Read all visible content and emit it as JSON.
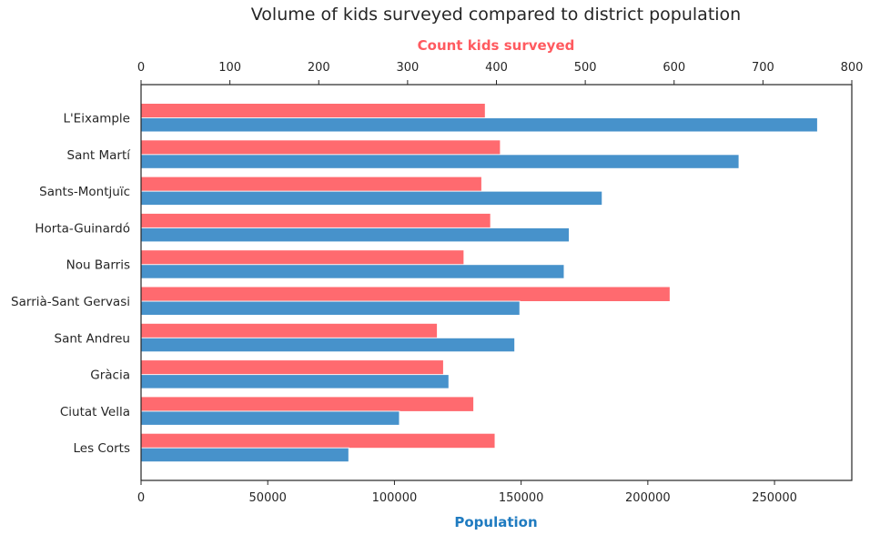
{
  "chart_data": {
    "type": "bar",
    "orientation": "horizontal",
    "title": "Volume of kids surveyed compared to district population",
    "categories": [
      "L'Eixample",
      "Sant Martí",
      "Sants-Montjuïc",
      "Horta-Guinardó",
      "Nou Barris",
      "Sarrià-Sant Gervasi",
      "Sant Andreu",
      "Gràcia",
      "Ciutat Vella",
      "Les Corts"
    ],
    "series": [
      {
        "name": "Count kids surveyed",
        "axis": "top",
        "color": "#ff5a5f",
        "values": [
          387,
          404,
          383,
          393,
          363,
          595,
          333,
          340,
          374,
          398
        ]
      },
      {
        "name": "Population",
        "axis": "bottom",
        "color": "#1f7bc0",
        "values": [
          267000,
          236000,
          182000,
          169000,
          167000,
          149500,
          147500,
          121500,
          102000,
          82000
        ]
      }
    ],
    "top_axis": {
      "label": "Count kids surveyed",
      "ticks": [
        "0",
        "100",
        "200",
        "300",
        "400",
        "500",
        "600",
        "700",
        "800"
      ],
      "range": [
        0,
        800
      ],
      "color": "#ff5a5f"
    },
    "bottom_axis": {
      "label": "Population",
      "ticks": [
        "0",
        "50000",
        "100000",
        "150000",
        "200000",
        "250000"
      ],
      "range": [
        0,
        280500
      ],
      "color": "#1f7bc0"
    },
    "grid": false
  }
}
